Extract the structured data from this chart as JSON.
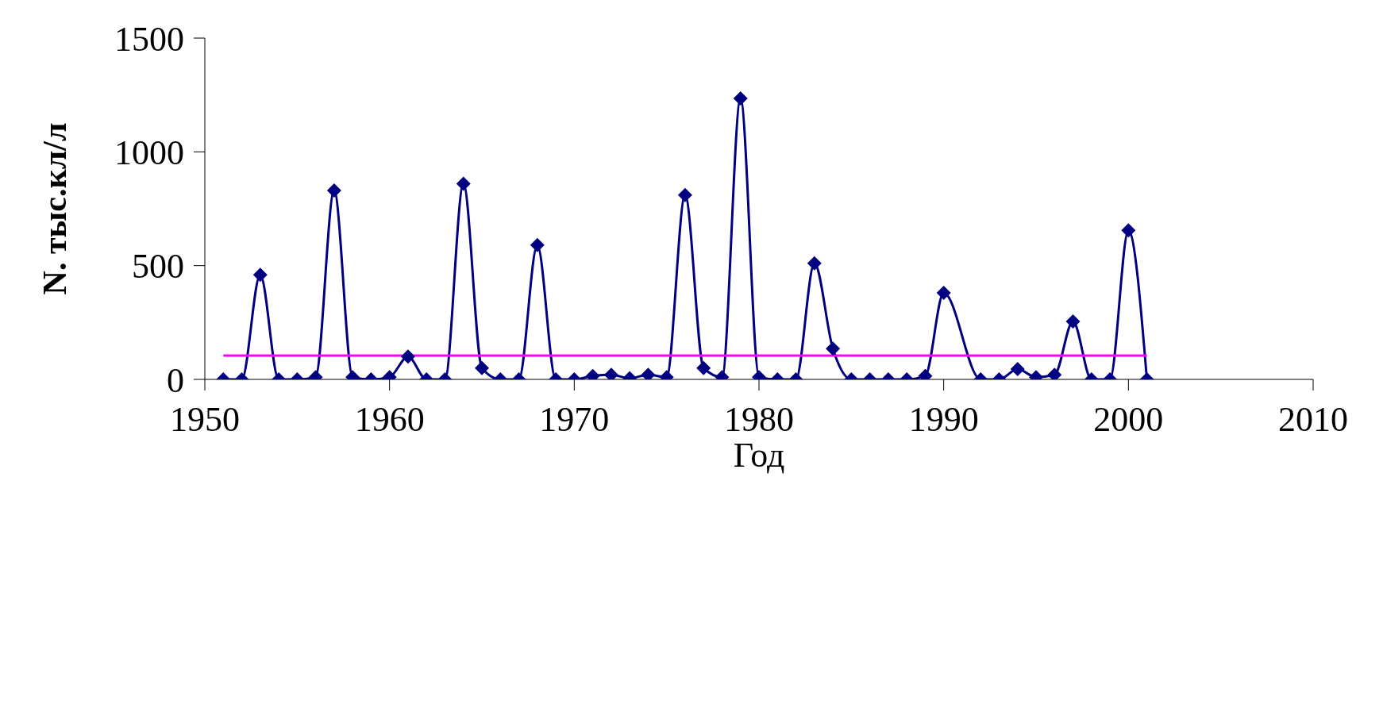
{
  "chart_data": {
    "type": "line",
    "xlabel": "Год",
    "ylabel": "N. тыс.кл/л",
    "xlim": [
      1950,
      2010
    ],
    "xticks": [
      1950,
      1960,
      1970,
      1980,
      1990,
      2000,
      2010
    ],
    "ylim": [
      0,
      1500
    ],
    "yticks": [
      0,
      500,
      1000,
      1500
    ],
    "marker": "diamond",
    "line_style": "solid",
    "series": [
      {
        "color": "#000080",
        "x": [
          1951,
          1952,
          1953,
          1954,
          1955,
          1956,
          1957,
          1958,
          1959,
          1960,
          1961,
          1962,
          1963,
          1964,
          1965,
          1966,
          1967,
          1968,
          1969,
          1970,
          1971,
          1972,
          1973,
          1974,
          1975,
          1976,
          1977,
          1978,
          1979,
          1980,
          1981,
          1982,
          1983,
          1984,
          1985,
          1986,
          1987,
          1988,
          1989,
          1990,
          1992,
          1993,
          1994,
          1995,
          1996,
          1997,
          1998,
          1999,
          2000,
          2001
        ],
        "values": [
          0,
          0,
          460,
          0,
          0,
          10,
          830,
          10,
          0,
          10,
          100,
          0,
          0,
          860,
          50,
          0,
          0,
          590,
          0,
          0,
          15,
          20,
          5,
          20,
          10,
          810,
          50,
          10,
          1235,
          10,
          0,
          0,
          510,
          135,
          0,
          0,
          0,
          0,
          15,
          380,
          0,
          0,
          45,
          10,
          20,
          255,
          0,
          0,
          655,
          0
        ]
      },
      {
        "type": "line",
        "color": "#ff00ff",
        "marker": "none",
        "x": [
          1951,
          2001
        ],
        "values": [
          105,
          105
        ]
      }
    ]
  }
}
